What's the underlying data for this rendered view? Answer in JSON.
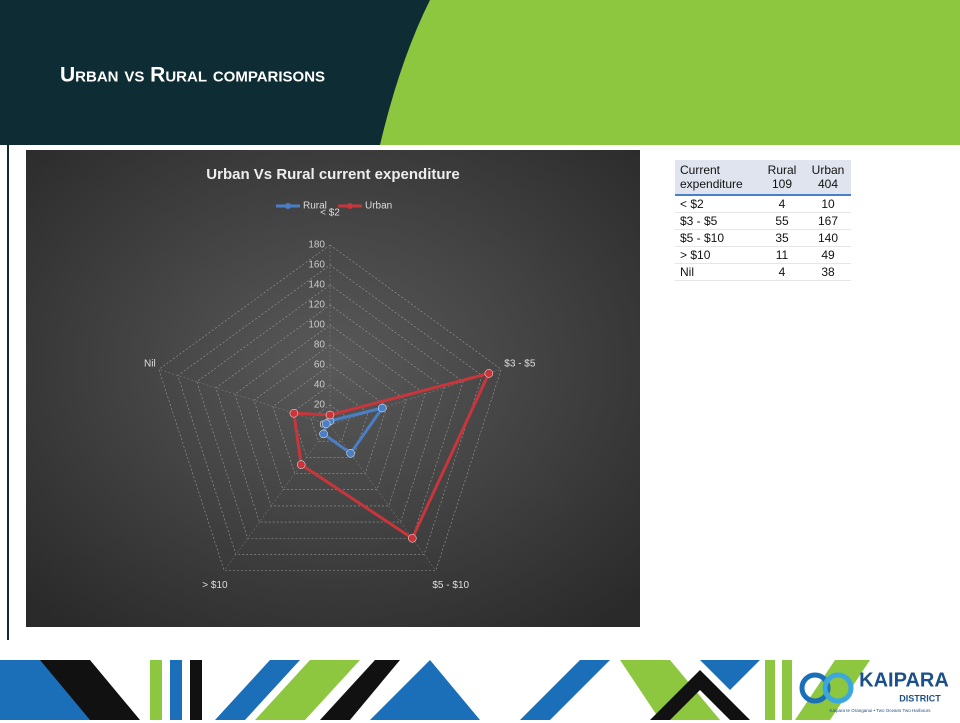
{
  "header": {
    "title": "Urban vs Rural comparisons"
  },
  "chart_data": {
    "type": "radar",
    "title": "Urban Vs Rural current expenditure",
    "categories": [
      "< $2",
      "$3 - $5",
      "$5 - $10",
      "> $10",
      "Nil"
    ],
    "series": [
      {
        "name": "Rural",
        "color": "#4a7fc8",
        "values": [
          4,
          55,
          35,
          11,
          4
        ]
      },
      {
        "name": "Urban",
        "color": "#c8353a",
        "values": [
          10,
          167,
          140,
          49,
          38
        ]
      }
    ],
    "ylim": [
      0,
      180
    ],
    "yticks": [
      0,
      20,
      40,
      60,
      80,
      100,
      120,
      140,
      160,
      180
    ],
    "grid": true,
    "legend": "top"
  },
  "table": {
    "header": [
      "Current expenditure",
      "Rural 109",
      "Urban 404"
    ],
    "rows": [
      [
        "< $2",
        "4",
        "10"
      ],
      [
        "$3 - $5",
        "55",
        "167"
      ],
      [
        "$5 - $10",
        "35",
        "140"
      ],
      [
        "> $10",
        "11",
        "49"
      ],
      [
        "Nil",
        "4",
        "38"
      ]
    ]
  },
  "logo": {
    "name": "KAIPARA",
    "sub": "DISTRICT",
    "tagline": "Kaipara te Oranganui • Two Oceans Two Harbours"
  }
}
